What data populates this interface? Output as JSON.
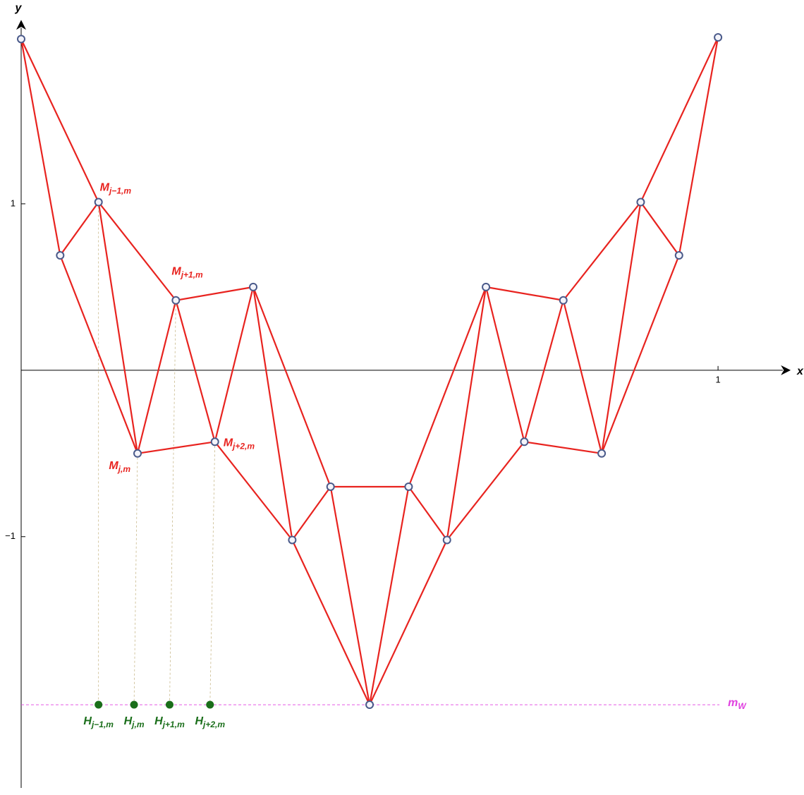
{
  "chart_data": {
    "type": "graph",
    "x_label": "x",
    "y_label": "y",
    "xlim": [
      0,
      1.093
    ],
    "ylim": [
      -2.51,
      2.1
    ],
    "xticks": [
      1
    ],
    "yticks": [
      {
        "value": -1,
        "label": "−1"
      },
      1
    ],
    "edge_color": "#e8231f",
    "x": [
      0,
      0.056,
      0.111,
      0.167,
      0.222,
      0.278,
      0.333,
      0.389,
      0.444,
      0.5,
      0.556,
      0.611,
      0.667,
      0.722,
      0.778,
      0.833,
      0.889,
      0.944,
      1
    ],
    "y": [
      1.99,
      0.69,
      1.01,
      -0.5,
      0.42,
      -0.43,
      0.5,
      -1.02,
      -0.7,
      -2.01,
      -0.7,
      -1.02,
      0.5,
      -0.43,
      0.42,
      -0.5,
      1.01,
      0.69,
      2.0
    ],
    "edges": [
      [
        0,
        1
      ],
      [
        0,
        2
      ],
      [
        1,
        2
      ],
      [
        1,
        3
      ],
      [
        2,
        3
      ],
      [
        2,
        4
      ],
      [
        3,
        4
      ],
      [
        3,
        5
      ],
      [
        4,
        5
      ],
      [
        4,
        6
      ],
      [
        5,
        6
      ],
      [
        5,
        7
      ],
      [
        6,
        7
      ],
      [
        6,
        8
      ],
      [
        7,
        8
      ],
      [
        7,
        9
      ],
      [
        8,
        9
      ],
      [
        8,
        10
      ],
      [
        9,
        10
      ],
      [
        9,
        11
      ],
      [
        10,
        11
      ],
      [
        10,
        12
      ],
      [
        11,
        12
      ],
      [
        11,
        13
      ],
      [
        12,
        13
      ],
      [
        12,
        14
      ],
      [
        13,
        14
      ],
      [
        13,
        15
      ],
      [
        14,
        15
      ],
      [
        14,
        16
      ],
      [
        15,
        16
      ],
      [
        15,
        17
      ],
      [
        16,
        17
      ],
      [
        16,
        18
      ],
      [
        17,
        18
      ]
    ],
    "vertex_labels": [
      {
        "point": 2,
        "text": "M",
        "sub": "j−1,m"
      },
      {
        "point": 3,
        "text": "M",
        "sub": "j,m"
      },
      {
        "point": 4,
        "text": "M",
        "sub": "j+1,m"
      },
      {
        "point": 5,
        "text": "M",
        "sub": "j+2,m"
      }
    ],
    "projections": {
      "color": "#1a6e1a",
      "x": [
        0.111,
        0.162,
        0.213,
        0.271
      ],
      "labels": [
        {
          "text": "H",
          "sub": "j−1,m"
        },
        {
          "text": "H",
          "sub": "j,m"
        },
        {
          "text": "H",
          "sub": "j+1,m"
        },
        {
          "text": "H",
          "sub": "j+2,m"
        }
      ]
    },
    "baseline": {
      "y": -2.01,
      "text": "m",
      "sub": "W",
      "color": "#e040e0"
    }
  }
}
